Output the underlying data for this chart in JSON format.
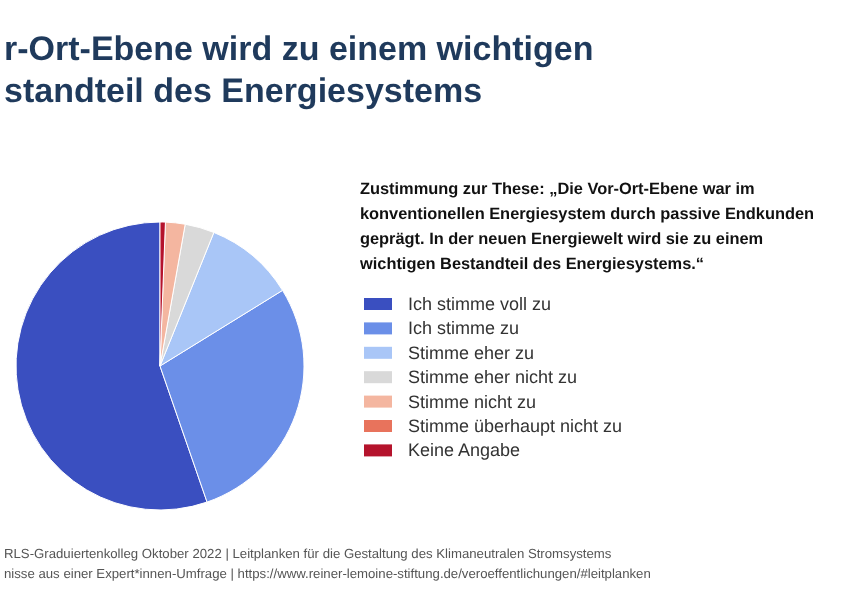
{
  "chart_data": {
    "type": "pie",
    "title": "r-Ort-Ebene wird zu einem wichtigen\nstandteil des Energiesystems",
    "legend_title": "Zustimmung zur These: „Die Vor-Ort-Ebene war im\nkonventionellen Energiesystem durch passive Endkunden\ngeprägt. In der neuen Energiewelt wird sie zu einem\nwichtigen Bestandteil des Energiesystems.“",
    "categories": [
      "Ich stimme voll zu",
      "Ich stimme zu",
      "Stimme eher zu",
      "Stimme eher nicht zu",
      "Stimme nicht zu",
      "Stimme überhaupt nicht zu",
      "Keine Angabe"
    ],
    "values": [
      55.3,
      28.5,
      10.1,
      3.3,
      2.2,
      0,
      0.6
    ],
    "colors": [
      "#3a4fc0",
      "#6b8fe8",
      "#a9c6f7",
      "#d9d9d9",
      "#f4b6a0",
      "#e8735c",
      "#b5132c"
    ],
    "legend": "right",
    "annotations": [
      "RLS-Graduiertenkolleg Oktober 2022 | Leitplanken für die Gestaltung des Klimaneutralen Stromsystems",
      "nisse aus einer Expert*innen-Umfrage | https://www.reiner-lemoine-stiftung.de/veroeffentlichungen/#leitplanken"
    ]
  }
}
